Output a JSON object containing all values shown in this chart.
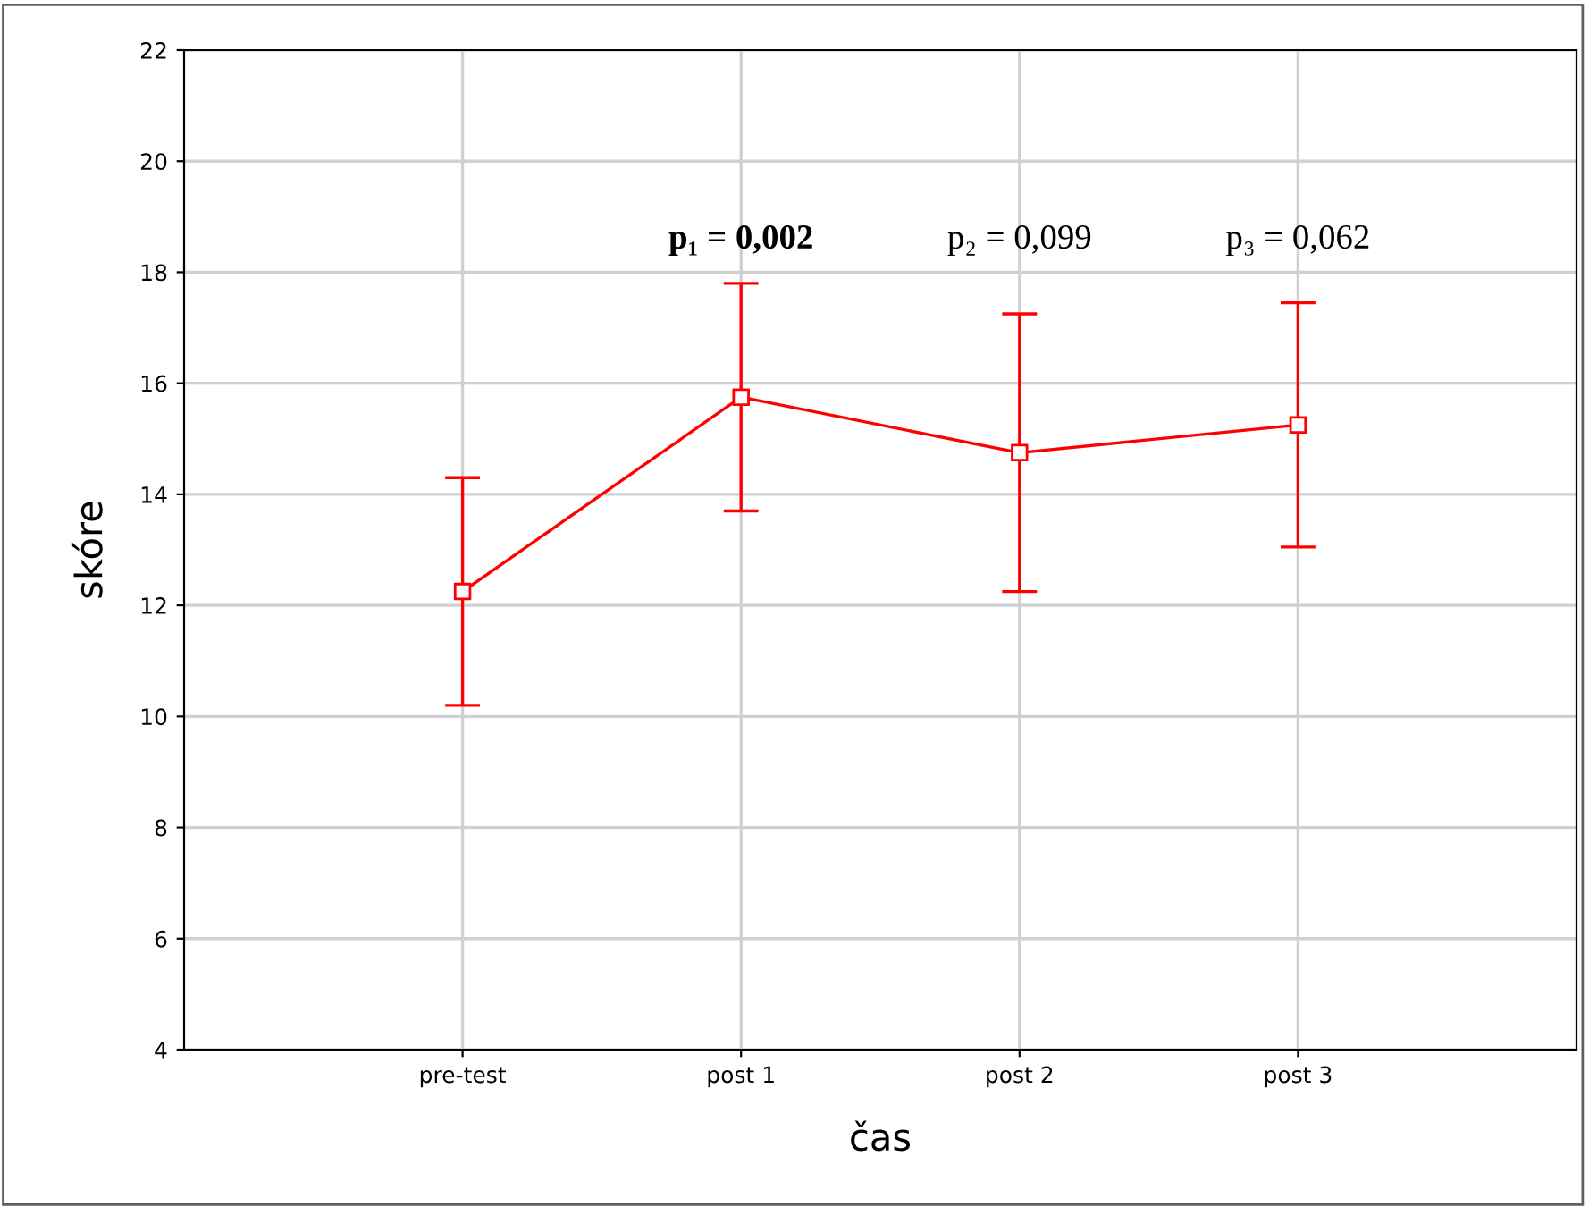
{
  "chart_data": {
    "type": "line",
    "xlabel": "čas",
    "ylabel": "skóre",
    "categories": [
      "pre-test",
      "post 1",
      "post 2",
      "post 3"
    ],
    "series": [
      {
        "color": "#ff0000",
        "values": [
          12.25,
          15.75,
          14.75,
          15.25
        ],
        "errors": [
          2.05,
          2.05,
          2.5,
          2.2
        ]
      }
    ],
    "marker": "square",
    "line_style": "solid",
    "ylim": [
      4,
      22
    ],
    "yticks": [
      4,
      6,
      8,
      10,
      12,
      14,
      16,
      18,
      20,
      22
    ],
    "grid": true,
    "annotations": [
      "p₁ = 0,002",
      "p₂ = 0,099",
      "p₃ = 0,062"
    ]
  }
}
